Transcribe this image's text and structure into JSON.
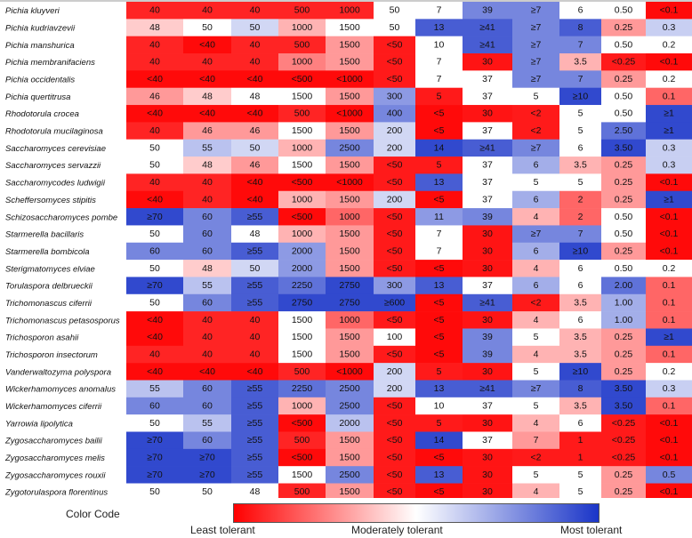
{
  "chart_data": {
    "type": "heatmap",
    "rows": [
      {
        "name": "Pichia kluyveri",
        "values": [
          "40",
          "40",
          "40",
          "500",
          "1000",
          "50",
          "7",
          "39",
          "≥7",
          "6",
          "0.50",
          "<0.1"
        ],
        "levels": [
          0.07,
          0.07,
          0.07,
          0.07,
          0.07,
          0.5,
          0.5,
          0.8,
          0.8,
          0.5,
          0.5,
          0.02
        ]
      },
      {
        "name": "Pichia kudriavzevii",
        "values": [
          "48",
          "50",
          "50",
          "1000",
          "1500",
          "50",
          "13",
          "≥41",
          "≥7",
          "8",
          "0.25",
          "0.3"
        ],
        "levels": [
          0.4,
          0.5,
          0.6,
          0.35,
          0.5,
          0.5,
          0.9,
          0.9,
          0.8,
          0.9,
          0.3,
          0.62
        ]
      },
      {
        "name": "Pichia manshurica",
        "values": [
          "40",
          "<40",
          "40",
          "500",
          "1500",
          "<50",
          "10",
          "≥41",
          "≥7",
          "7",
          "0.50",
          "0.2"
        ],
        "levels": [
          0.07,
          0.02,
          0.07,
          0.07,
          0.3,
          0.05,
          0.5,
          0.9,
          0.8,
          0.8,
          0.5,
          0.5
        ]
      },
      {
        "name": "Pichia membranifaciens",
        "values": [
          "40",
          "40",
          "40",
          "1000",
          "1500",
          "<50",
          "7",
          "30",
          "≥7",
          "3.5",
          "<0.25",
          "<0.1"
        ],
        "levels": [
          0.07,
          0.07,
          0.07,
          0.25,
          0.3,
          0.05,
          0.5,
          0.04,
          0.8,
          0.35,
          0.05,
          0.02
        ]
      },
      {
        "name": "Pichia occidentalis",
        "values": [
          "<40",
          "<40",
          "<40",
          "<500",
          "<1000",
          "<50",
          "7",
          "37",
          "≥7",
          "7",
          "0.25",
          "0.2"
        ],
        "levels": [
          0.02,
          0.02,
          0.02,
          0.02,
          0.02,
          0.05,
          0.5,
          0.5,
          0.8,
          0.8,
          0.3,
          0.5
        ]
      },
      {
        "name": "Pichia quertitrusa",
        "values": [
          "46",
          "48",
          "48",
          "1500",
          "1500",
          "300",
          "5",
          "37",
          "5",
          "≥10",
          "0.50",
          "0.1"
        ],
        "levels": [
          0.3,
          0.4,
          0.5,
          0.5,
          0.3,
          0.75,
          0.05,
          0.5,
          0.5,
          0.95,
          0.5,
          0.2
        ]
      },
      {
        "name": "Rhodotorula crocea",
        "values": [
          "<40",
          "<40",
          "<40",
          "500",
          "<1000",
          "400",
          "<5",
          "30",
          "<2",
          "5",
          "0.50",
          "≥1"
        ],
        "levels": [
          0.02,
          0.02,
          0.02,
          0.07,
          0.02,
          0.8,
          0.02,
          0.04,
          0.05,
          0.5,
          0.5,
          0.95
        ]
      },
      {
        "name": "Rhodotorula mucilaginosa",
        "values": [
          "40",
          "46",
          "46",
          "1500",
          "1500",
          "200",
          "<5",
          "37",
          "<2",
          "5",
          "2.50",
          "≥1"
        ],
        "levels": [
          0.07,
          0.3,
          0.3,
          0.5,
          0.3,
          0.6,
          0.02,
          0.5,
          0.05,
          0.5,
          0.85,
          0.95
        ]
      },
      {
        "name": "Saccharomyces cerevisiae",
        "values": [
          "50",
          "55",
          "50",
          "1000",
          "2500",
          "200",
          "14",
          "≥41",
          "≥7",
          "6",
          "3.50",
          "0.3"
        ],
        "levels": [
          0.5,
          0.65,
          0.6,
          0.35,
          0.8,
          0.6,
          0.95,
          0.9,
          0.8,
          0.5,
          0.95,
          0.62
        ]
      },
      {
        "name": "Saccharomyces servazzii",
        "values": [
          "50",
          "48",
          "46",
          "1500",
          "1500",
          "<50",
          "5",
          "37",
          "6",
          "3.5",
          "0.25",
          "0.3"
        ],
        "levels": [
          0.5,
          0.4,
          0.3,
          0.5,
          0.3,
          0.05,
          0.05,
          0.5,
          0.7,
          0.35,
          0.3,
          0.62
        ]
      },
      {
        "name": "Saccharomycodes ludwigii",
        "values": [
          "40",
          "40",
          "<40",
          "<500",
          "<1000",
          "<50",
          "13",
          "37",
          "5",
          "5",
          "0.25",
          "<0.1"
        ],
        "levels": [
          0.07,
          0.07,
          0.02,
          0.02,
          0.02,
          0.05,
          0.9,
          0.5,
          0.5,
          0.5,
          0.3,
          0.02
        ]
      },
      {
        "name": "Scheffersomyces stipitis",
        "values": [
          "<40",
          "40",
          "<40",
          "1000",
          "1500",
          "200",
          "<5",
          "37",
          "6",
          "2",
          "0.25",
          "≥1"
        ],
        "levels": [
          0.02,
          0.07,
          0.02,
          0.35,
          0.3,
          0.6,
          0.02,
          0.5,
          0.7,
          0.2,
          0.3,
          0.95
        ]
      },
      {
        "name": "Schizosaccharomyces pombe",
        "values": [
          "≥70",
          "60",
          "≥55",
          "<500",
          "1000",
          "<50",
          "11",
          "39",
          "4",
          "2",
          "0.50",
          "<0.1"
        ],
        "levels": [
          0.95,
          0.8,
          0.9,
          0.02,
          0.2,
          0.05,
          0.75,
          0.8,
          0.35,
          0.2,
          0.5,
          0.02
        ]
      },
      {
        "name": "Starmerella bacillaris",
        "values": [
          "50",
          "60",
          "48",
          "1000",
          "1500",
          "<50",
          "7",
          "30",
          "≥7",
          "7",
          "0.50",
          "<0.1"
        ],
        "levels": [
          0.5,
          0.8,
          0.5,
          0.35,
          0.3,
          0.05,
          0.5,
          0.04,
          0.8,
          0.8,
          0.5,
          0.02
        ]
      },
      {
        "name": "Starmerella bombicola",
        "values": [
          "60",
          "60",
          "≥55",
          "2000",
          "1500",
          "<50",
          "7",
          "30",
          "6",
          "≥10",
          "0.25",
          "<0.1"
        ],
        "levels": [
          0.8,
          0.8,
          0.9,
          0.75,
          0.3,
          0.05,
          0.5,
          0.04,
          0.7,
          0.95,
          0.3,
          0.02
        ]
      },
      {
        "name": "Sterigmatomyces elviae",
        "values": [
          "50",
          "48",
          "50",
          "2000",
          "1500",
          "<50",
          "<5",
          "30",
          "4",
          "6",
          "0.50",
          "0.2"
        ],
        "levels": [
          0.5,
          0.4,
          0.6,
          0.75,
          0.3,
          0.05,
          0.02,
          0.04,
          0.35,
          0.5,
          0.5,
          0.5
        ]
      },
      {
        "name": "Torulaspora delbrueckii",
        "values": [
          "≥70",
          "55",
          "≥55",
          "2250",
          "2750",
          "300",
          "13",
          "37",
          "6",
          "6",
          "2.00",
          "0.1"
        ],
        "levels": [
          0.95,
          0.65,
          0.9,
          0.85,
          0.95,
          0.75,
          0.9,
          0.5,
          0.7,
          0.5,
          0.85,
          0.2
        ]
      },
      {
        "name": "Trichomonascus ciferrii",
        "values": [
          "50",
          "60",
          "≥55",
          "2750",
          "2750",
          "≥600",
          "<5",
          "≥41",
          "<2",
          "3.5",
          "1.00",
          "0.1"
        ],
        "levels": [
          0.5,
          0.8,
          0.9,
          0.95,
          0.95,
          0.95,
          0.02,
          0.9,
          0.05,
          0.35,
          0.7,
          0.2
        ]
      },
      {
        "name": "Trichomonascus petasosporus",
        "values": [
          "<40",
          "40",
          "40",
          "1500",
          "1000",
          "<50",
          "<5",
          "30",
          "4",
          "6",
          "1.00",
          "0.1"
        ],
        "levels": [
          0.02,
          0.07,
          0.07,
          0.5,
          0.2,
          0.05,
          0.02,
          0.04,
          0.35,
          0.5,
          0.7,
          0.2
        ]
      },
      {
        "name": "Trichosporon asahii",
        "values": [
          "<40",
          "40",
          "40",
          "1500",
          "1500",
          "100",
          "<5",
          "39",
          "5",
          "3.5",
          "0.25",
          "≥1"
        ],
        "levels": [
          0.02,
          0.07,
          0.07,
          0.5,
          0.3,
          0.5,
          0.02,
          0.8,
          0.5,
          0.35,
          0.3,
          0.95
        ]
      },
      {
        "name": "Trichosporon insectorum",
        "values": [
          "40",
          "40",
          "40",
          "1500",
          "1500",
          "<50",
          "<5",
          "39",
          "4",
          "3.5",
          "0.25",
          "0.1"
        ],
        "levels": [
          0.07,
          0.07,
          0.07,
          0.5,
          0.3,
          0.05,
          0.02,
          0.8,
          0.35,
          0.35,
          0.3,
          0.2
        ]
      },
      {
        "name": "Vanderwaltozyma polyspora",
        "values": [
          "<40",
          "<40",
          "<40",
          "500",
          "<1000",
          "200",
          "5",
          "30",
          "5",
          "≥10",
          "0.25",
          "0.2"
        ],
        "levels": [
          0.02,
          0.02,
          0.02,
          0.07,
          0.02,
          0.6,
          0.05,
          0.04,
          0.5,
          0.95,
          0.3,
          0.5
        ]
      },
      {
        "name": "Wickerhamomyces anomalus",
        "values": [
          "55",
          "60",
          "≥55",
          "2250",
          "2500",
          "200",
          "13",
          "≥41",
          "≥7",
          "8",
          "3.50",
          "0.3"
        ],
        "levels": [
          0.65,
          0.8,
          0.9,
          0.85,
          0.8,
          0.6,
          0.9,
          0.9,
          0.8,
          0.9,
          0.95,
          0.62
        ]
      },
      {
        "name": "Wickerhamomyces ciferrii",
        "values": [
          "60",
          "60",
          "≥55",
          "1000",
          "2500",
          "<50",
          "10",
          "37",
          "5",
          "3.5",
          "3.50",
          "0.1"
        ],
        "levels": [
          0.8,
          0.8,
          0.9,
          0.35,
          0.8,
          0.05,
          0.5,
          0.5,
          0.5,
          0.35,
          0.95,
          0.2
        ]
      },
      {
        "name": "Yarrowia lipolytica",
        "values": [
          "50",
          "55",
          "≥55",
          "<500",
          "2000",
          "<50",
          "5",
          "30",
          "4",
          "6",
          "<0.25",
          "<0.1"
        ],
        "levels": [
          0.5,
          0.65,
          0.9,
          0.02,
          0.65,
          0.05,
          0.05,
          0.04,
          0.35,
          0.5,
          0.05,
          0.02
        ]
      },
      {
        "name": "Zygosaccharomyces bailii",
        "values": [
          "≥70",
          "60",
          "≥55",
          "500",
          "1500",
          "<50",
          "14",
          "37",
          "7",
          "1",
          "<0.25",
          "<0.1"
        ],
        "levels": [
          0.95,
          0.8,
          0.9,
          0.07,
          0.3,
          0.05,
          0.95,
          0.5,
          0.3,
          0.05,
          0.05,
          0.02
        ]
      },
      {
        "name": "Zygosaccharomyces melis",
        "values": [
          "≥70",
          "≥70",
          "≥55",
          "<500",
          "1500",
          "<50",
          "<5",
          "30",
          "<2",
          "1",
          "<0.25",
          "<0.1"
        ],
        "levels": [
          0.95,
          0.95,
          0.9,
          0.02,
          0.3,
          0.05,
          0.02,
          0.04,
          0.05,
          0.05,
          0.05,
          0.02
        ]
      },
      {
        "name": "Zygosaccharomyces rouxii",
        "values": [
          "≥70",
          "≥70",
          "≥55",
          "1500",
          "2500",
          "<50",
          "13",
          "30",
          "5",
          "5",
          "0.25",
          "0.5"
        ],
        "levels": [
          0.95,
          0.95,
          0.9,
          0.5,
          0.8,
          0.05,
          0.9,
          0.04,
          0.5,
          0.5,
          0.3,
          0.8
        ]
      },
      {
        "name": "Zygotorulaspora florentinus",
        "values": [
          "50",
          "50",
          "48",
          "500",
          "1500",
          "<50",
          "<5",
          "30",
          "4",
          "5",
          "0.25",
          "<0.1"
        ],
        "levels": [
          0.5,
          0.5,
          0.5,
          0.07,
          0.3,
          0.05,
          0.02,
          0.04,
          0.35,
          0.5,
          0.3,
          0.02
        ]
      }
    ],
    "legend": {
      "title": "Color Code",
      "low_label": "Least tolerant",
      "mid_label": "Moderately tolerant",
      "high_label": "Most tolerant",
      "low_color": "#ff0000",
      "mid_color": "#ffffff",
      "high_color": "#1a35c8"
    }
  }
}
